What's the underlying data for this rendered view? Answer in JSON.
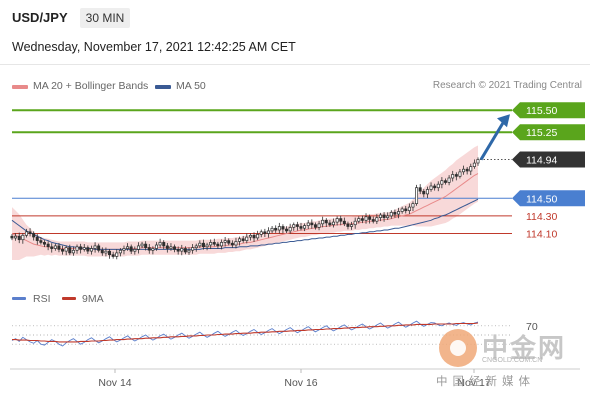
{
  "header": {
    "symbol": "USD/JPY",
    "timeframe": "30 MIN",
    "timestamp": "Wednesday, November 17, 2021 12:42:25 AM CET"
  },
  "legend": {
    "ma20_label": "MA 20 + Bollinger Bands",
    "ma50_label": "MA 50",
    "credit": "Research © 2021 Trading Central",
    "rsi_label": "RSI",
    "ma9_label": "9MA"
  },
  "colors": {
    "resistance": "#5aa51c",
    "current": "#333333",
    "pivot": "#4a7fd0",
    "support": "#c0392b",
    "ma20": "#e88a8a",
    "ma50": "#3a5a94",
    "bands_fill": "#f6cccc",
    "candle": "#2f2f2f",
    "arrow": "#2e68a8",
    "rsi": "#5b7fcc",
    "ma9": "#c0392b"
  },
  "watermark": {
    "brand": "中金网",
    "site": "CNGOLD.COM.CN",
    "tagline": "中国经新媒体"
  },
  "chart_data": {
    "type": "candlestick",
    "x_labels": [
      "Nov 14",
      "Nov 16",
      "Nov 17"
    ],
    "ylim": [
      113.55,
      115.65
    ],
    "levels": [
      {
        "label": "115.50",
        "value": 115.5,
        "kind": "resistance"
      },
      {
        "label": "115.25",
        "value": 115.25,
        "kind": "resistance"
      },
      {
        "label": "114.94",
        "value": 114.94,
        "kind": "current"
      },
      {
        "label": "114.50",
        "value": 114.5,
        "kind": "pivot"
      },
      {
        "label": "114.30",
        "value": 114.3,
        "kind": "support"
      },
      {
        "label": "114.10",
        "value": 114.1,
        "kind": "support"
      }
    ],
    "close": [
      114.05,
      114.07,
      114.03,
      114.08,
      114.12,
      114.1,
      114.06,
      114.02,
      114.0,
      113.98,
      113.95,
      113.93,
      113.96,
      113.92,
      113.9,
      113.94,
      113.88,
      113.91,
      113.95,
      113.92,
      113.94,
      113.9,
      113.93,
      113.96,
      113.91,
      113.88,
      113.9,
      113.86,
      113.84,
      113.88,
      113.91,
      113.93,
      113.95,
      113.9,
      113.92,
      113.96,
      113.98,
      113.94,
      113.91,
      113.93,
      113.97,
      114.0,
      113.96,
      113.93,
      113.95,
      113.92,
      113.9,
      113.93,
      113.89,
      113.91,
      113.94,
      113.96,
      113.99,
      113.95,
      113.97,
      114.0,
      113.98,
      113.96,
      114.0,
      114.02,
      113.99,
      113.97,
      114.01,
      114.04,
      114.02,
      114.06,
      114.08,
      114.05,
      114.09,
      114.12,
      114.1,
      114.13,
      114.16,
      114.14,
      114.18,
      114.15,
      114.13,
      114.17,
      114.2,
      114.18,
      114.16,
      114.19,
      114.22,
      114.2,
      114.17,
      114.21,
      114.25,
      114.22,
      114.2,
      114.23,
      114.27,
      114.24,
      114.21,
      114.18,
      114.2,
      114.24,
      114.27,
      114.25,
      114.29,
      114.26,
      114.24,
      114.28,
      114.31,
      114.28,
      114.3,
      114.34,
      114.32,
      114.35,
      114.38,
      114.36,
      114.4,
      114.44,
      114.62,
      114.58,
      114.55,
      114.6,
      114.64,
      114.62,
      114.66,
      114.7,
      114.68,
      114.73,
      114.77,
      114.75,
      114.8,
      114.83,
      114.81,
      114.86,
      114.9,
      114.94
    ],
    "ma20": [
      114.1,
      114.08,
      114.06,
      114.04,
      114.02,
      114.0,
      113.98,
      113.97,
      113.96,
      113.95,
      113.95,
      113.94,
      113.94,
      113.93,
      113.93,
      113.93,
      113.93,
      113.93,
      113.93,
      113.93,
      113.93,
      113.92,
      113.92,
      113.92,
      113.92,
      113.92,
      113.92,
      113.92,
      113.92,
      113.92,
      113.92,
      113.92,
      113.93,
      113.93,
      113.93,
      113.93,
      113.94,
      113.94,
      113.94,
      113.94,
      113.94,
      113.94,
      113.94,
      113.94,
      113.94,
      113.94,
      113.94,
      113.94,
      113.94,
      113.94,
      113.94,
      113.94,
      113.95,
      113.95,
      113.95,
      113.95,
      113.95,
      113.96,
      113.96,
      113.96,
      113.97,
      113.97,
      113.98,
      113.98,
      113.99,
      114.0,
      114.0,
      114.01,
      114.02,
      114.03,
      114.04,
      114.05,
      114.06,
      114.07,
      114.08,
      114.09,
      114.1,
      114.11,
      114.12,
      114.13,
      114.14,
      114.14,
      114.15,
      114.16,
      114.16,
      114.17,
      114.18,
      114.18,
      114.19,
      114.19,
      114.2,
      114.2,
      114.21,
      114.21,
      114.21,
      114.22,
      114.22,
      114.23,
      114.23,
      114.24,
      114.24,
      114.25,
      114.25,
      114.26,
      114.26,
      114.27,
      114.28,
      114.29,
      114.3,
      114.31,
      114.32,
      114.34,
      114.36,
      114.38,
      114.4,
      114.42,
      114.44,
      114.46,
      114.48,
      114.5,
      114.52,
      114.55,
      114.58,
      114.61,
      114.64,
      114.67,
      114.7,
      114.73,
      114.76,
      114.78
    ],
    "ma50": [
      114.25,
      114.22,
      114.19,
      114.16,
      114.13,
      114.11,
      114.09,
      114.07,
      114.05,
      114.03,
      114.02,
      114.0,
      113.99,
      113.98,
      113.97,
      113.96,
      113.95,
      113.95,
      113.94,
      113.94,
      113.93,
      113.93,
      113.93,
      113.92,
      113.92,
      113.92,
      113.92,
      113.92,
      113.92,
      113.92,
      113.92,
      113.92,
      113.92,
      113.92,
      113.92,
      113.92,
      113.92,
      113.92,
      113.92,
      113.92,
      113.92,
      113.92,
      113.92,
      113.92,
      113.92,
      113.92,
      113.92,
      113.92,
      113.92,
      113.92,
      113.92,
      113.92,
      113.92,
      113.93,
      113.93,
      113.93,
      113.93,
      113.93,
      113.93,
      113.94,
      113.94,
      113.94,
      113.94,
      113.95,
      113.95,
      113.95,
      113.96,
      113.96,
      113.96,
      113.97,
      113.97,
      113.98,
      113.98,
      113.99,
      113.99,
      114.0,
      114.0,
      114.01,
      114.01,
      114.02,
      114.02,
      114.03,
      114.03,
      114.04,
      114.04,
      114.05,
      114.05,
      114.06,
      114.06,
      114.07,
      114.07,
      114.08,
      114.08,
      114.09,
      114.09,
      114.1,
      114.1,
      114.11,
      114.11,
      114.12,
      114.12,
      114.13,
      114.13,
      114.14,
      114.14,
      114.15,
      114.16,
      114.16,
      114.17,
      114.18,
      114.19,
      114.2,
      114.21,
      114.22,
      114.23,
      114.24,
      114.25,
      114.27,
      114.28,
      114.3,
      114.31,
      114.33,
      114.35,
      114.37,
      114.39,
      114.41,
      114.43,
      114.45,
      114.47,
      114.49
    ],
    "bands_width": [
      0.3,
      0.28,
      0.26,
      0.22,
      0.18,
      0.16,
      0.14,
      0.12,
      0.1,
      0.1,
      0.09,
      0.09,
      0.08,
      0.08,
      0.08,
      0.08,
      0.08,
      0.08,
      0.08,
      0.08,
      0.08,
      0.08,
      0.08,
      0.08,
      0.08,
      0.08,
      0.08,
      0.08,
      0.08,
      0.08,
      0.08,
      0.08,
      0.08,
      0.08,
      0.08,
      0.08,
      0.08,
      0.08,
      0.08,
      0.08,
      0.08,
      0.08,
      0.08,
      0.08,
      0.08,
      0.08,
      0.08,
      0.08,
      0.08,
      0.08,
      0.08,
      0.08,
      0.08,
      0.08,
      0.08,
      0.08,
      0.08,
      0.08,
      0.08,
      0.08,
      0.08,
      0.08,
      0.08,
      0.08,
      0.08,
      0.08,
      0.08,
      0.08,
      0.08,
      0.08,
      0.08,
      0.08,
      0.08,
      0.08,
      0.08,
      0.08,
      0.08,
      0.08,
      0.08,
      0.08,
      0.08,
      0.08,
      0.08,
      0.08,
      0.08,
      0.08,
      0.08,
      0.08,
      0.08,
      0.08,
      0.08,
      0.08,
      0.08,
      0.08,
      0.08,
      0.08,
      0.08,
      0.08,
      0.08,
      0.08,
      0.08,
      0.08,
      0.08,
      0.08,
      0.08,
      0.08,
      0.09,
      0.1,
      0.11,
      0.12,
      0.13,
      0.15,
      0.18,
      0.2,
      0.22,
      0.24,
      0.26,
      0.27,
      0.28,
      0.29,
      0.3,
      0.31,
      0.31,
      0.32,
      0.32,
      0.32,
      0.32,
      0.32,
      0.32,
      0.32
    ],
    "arrow_target": 115.5,
    "rsi": {
      "level_label": "70",
      "level": 70,
      "ylim": [
        0,
        100
      ],
      "values": [
        38,
        42,
        36,
        45,
        40,
        35,
        32,
        38,
        30,
        28,
        34,
        40,
        36,
        30,
        26,
        33,
        38,
        42,
        36,
        30,
        34,
        40,
        44,
        38,
        33,
        37,
        42,
        46,
        40,
        35,
        39,
        44,
        48,
        42,
        37,
        41,
        46,
        50,
        44,
        39,
        43,
        48,
        52,
        46,
        41,
        45,
        50,
        54,
        48,
        43,
        47,
        52,
        56,
        50,
        45,
        49,
        54,
        58,
        52,
        47,
        51,
        56,
        60,
        54,
        49,
        53,
        58,
        62,
        56,
        51,
        55,
        60,
        64,
        58,
        53,
        57,
        62,
        66,
        60,
        55,
        59,
        64,
        68,
        62,
        57,
        61,
        66,
        70,
        64,
        59,
        63,
        68,
        72,
        66,
        61,
        65,
        70,
        74,
        68,
        63,
        67,
        72,
        76,
        70,
        65,
        69,
        74,
        78,
        72,
        67,
        71,
        76,
        80,
        74,
        69,
        73,
        77,
        76,
        72,
        70,
        74,
        76,
        73,
        71,
        75,
        77,
        74,
        72,
        76,
        78
      ],
      "ma9": [
        40,
        40,
        39,
        39,
        39,
        38,
        38,
        38,
        37,
        37,
        36,
        36,
        36,
        35,
        35,
        35,
        35,
        35,
        35,
        36,
        36,
        36,
        37,
        37,
        37,
        38,
        38,
        39,
        39,
        40,
        40,
        40,
        41,
        41,
        42,
        42,
        42,
        43,
        43,
        44,
        44,
        44,
        45,
        45,
        46,
        46,
        46,
        47,
        47,
        48,
        48,
        48,
        49,
        49,
        50,
        50,
        50,
        51,
        51,
        52,
        52,
        52,
        53,
        53,
        54,
        54,
        54,
        55,
        55,
        56,
        56,
        56,
        57,
        57,
        58,
        58,
        58,
        59,
        59,
        60,
        60,
        60,
        61,
        61,
        62,
        62,
        62,
        63,
        63,
        64,
        64,
        64,
        65,
        65,
        66,
        66,
        66,
        67,
        67,
        68,
        68,
        68,
        69,
        69,
        70,
        70,
        70,
        71,
        71,
        72,
        72,
        72,
        73,
        73,
        73,
        73,
        73,
        74,
        74,
        74,
        74,
        74,
        74,
        75,
        75,
        75,
        75,
        75,
        75,
        76
      ]
    }
  }
}
